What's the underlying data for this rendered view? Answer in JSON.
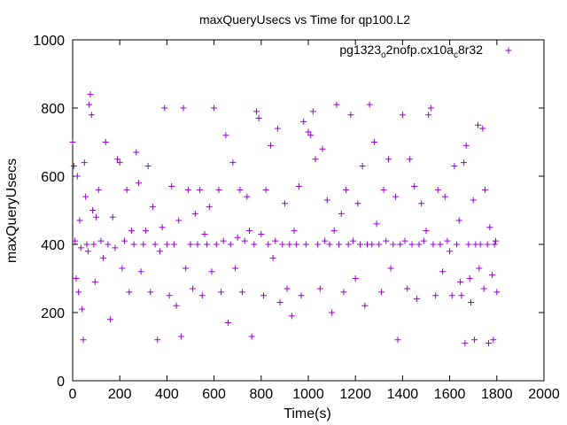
{
  "chart_data": {
    "type": "scatter",
    "title": "maxQueryUsecs vs Time for qp100.L2",
    "xlabel": "Time(s)",
    "ylabel": "maxQueryUsecs",
    "xlim": [
      0,
      2000
    ],
    "ylim": [
      0,
      1000
    ],
    "x_ticks": [
      0,
      200,
      400,
      600,
      800,
      1000,
      1200,
      1400,
      1600,
      1800,
      2000
    ],
    "y_ticks": [
      0,
      200,
      400,
      600,
      800,
      1000
    ],
    "grid": false,
    "legend_position": "top-right",
    "series": [
      {
        "name": "pg1323_o2nofp.cx10a_c8r32",
        "name_parts": {
          "a": "pg1323",
          "b": "o",
          "c": "2nofp.cx10a",
          "d": "c",
          "e": "8r32"
        },
        "marker": "plus",
        "color": "#9400d3",
        "points": [
          [
            0,
            700
          ],
          [
            5,
            630
          ],
          [
            10,
            410
          ],
          [
            15,
            300
          ],
          [
            20,
            600
          ],
          [
            25,
            260
          ],
          [
            30,
            470
          ],
          [
            35,
            390
          ],
          [
            40,
            210
          ],
          [
            45,
            120
          ],
          [
            50,
            640
          ],
          [
            55,
            540
          ],
          [
            60,
            400
          ],
          [
            65,
            380
          ],
          [
            70,
            810
          ],
          [
            75,
            840
          ],
          [
            80,
            780
          ],
          [
            85,
            500
          ],
          [
            90,
            400
          ],
          [
            95,
            290
          ],
          [
            100,
            480
          ],
          [
            110,
            560
          ],
          [
            120,
            410
          ],
          [
            130,
            360
          ],
          [
            140,
            700
          ],
          [
            150,
            400
          ],
          [
            160,
            180
          ],
          [
            170,
            480
          ],
          [
            180,
            390
          ],
          [
            190,
            650
          ],
          [
            200,
            640
          ],
          [
            210,
            330
          ],
          [
            220,
            410
          ],
          [
            230,
            560
          ],
          [
            240,
            260
          ],
          [
            250,
            440
          ],
          [
            260,
            400
          ],
          [
            270,
            670
          ],
          [
            280,
            580
          ],
          [
            290,
            320
          ],
          [
            300,
            400
          ],
          [
            310,
            440
          ],
          [
            320,
            630
          ],
          [
            330,
            260
          ],
          [
            340,
            510
          ],
          [
            350,
            400
          ],
          [
            360,
            120
          ],
          [
            370,
            380
          ],
          [
            380,
            450
          ],
          [
            390,
            800
          ],
          [
            400,
            400
          ],
          [
            410,
            250
          ],
          [
            420,
            570
          ],
          [
            430,
            400
          ],
          [
            440,
            220
          ],
          [
            450,
            470
          ],
          [
            460,
            130
          ],
          [
            470,
            800
          ],
          [
            480,
            330
          ],
          [
            490,
            560
          ],
          [
            500,
            400
          ],
          [
            510,
            270
          ],
          [
            520,
            490
          ],
          [
            530,
            400
          ],
          [
            540,
            560
          ],
          [
            550,
            250
          ],
          [
            560,
            430
          ],
          [
            570,
            400
          ],
          [
            580,
            510
          ],
          [
            590,
            320
          ],
          [
            600,
            800
          ],
          [
            610,
            400
          ],
          [
            620,
            560
          ],
          [
            630,
            260
          ],
          [
            640,
            410
          ],
          [
            650,
            720
          ],
          [
            660,
            170
          ],
          [
            670,
            400
          ],
          [
            680,
            640
          ],
          [
            690,
            330
          ],
          [
            700,
            420
          ],
          [
            710,
            560
          ],
          [
            720,
            260
          ],
          [
            730,
            410
          ],
          [
            740,
            540
          ],
          [
            750,
            440
          ],
          [
            760,
            130
          ],
          [
            770,
            400
          ],
          [
            780,
            790
          ],
          [
            790,
            770
          ],
          [
            800,
            430
          ],
          [
            810,
            250
          ],
          [
            820,
            560
          ],
          [
            830,
            400
          ],
          [
            840,
            690
          ],
          [
            850,
            360
          ],
          [
            860,
            410
          ],
          [
            870,
            740
          ],
          [
            880,
            230
          ],
          [
            890,
            400
          ],
          [
            900,
            520
          ],
          [
            910,
            270
          ],
          [
            920,
            400
          ],
          [
            930,
            190
          ],
          [
            940,
            440
          ],
          [
            950,
            400
          ],
          [
            960,
            570
          ],
          [
            970,
            250
          ],
          [
            980,
            760
          ],
          [
            990,
            400
          ],
          [
            1000,
            730
          ],
          [
            1010,
            720
          ],
          [
            1020,
            790
          ],
          [
            1030,
            650
          ],
          [
            1040,
            400
          ],
          [
            1050,
            270
          ],
          [
            1060,
            680
          ],
          [
            1070,
            410
          ],
          [
            1080,
            530
          ],
          [
            1090,
            400
          ],
          [
            1100,
            200
          ],
          [
            1110,
            440
          ],
          [
            1120,
            810
          ],
          [
            1130,
            400
          ],
          [
            1140,
            490
          ],
          [
            1150,
            260
          ],
          [
            1160,
            560
          ],
          [
            1170,
            400
          ],
          [
            1180,
            780
          ],
          [
            1190,
            410
          ],
          [
            1200,
            300
          ],
          [
            1210,
            520
          ],
          [
            1220,
            400
          ],
          [
            1230,
            630
          ],
          [
            1240,
            220
          ],
          [
            1250,
            400
          ],
          [
            1260,
            810
          ],
          [
            1270,
            400
          ],
          [
            1280,
            700
          ],
          [
            1290,
            460
          ],
          [
            1300,
            400
          ],
          [
            1310,
            260
          ],
          [
            1320,
            560
          ],
          [
            1330,
            410
          ],
          [
            1340,
            650
          ],
          [
            1350,
            330
          ],
          [
            1360,
            400
          ],
          [
            1370,
            540
          ],
          [
            1380,
            120
          ],
          [
            1390,
            400
          ],
          [
            1400,
            780
          ],
          [
            1410,
            410
          ],
          [
            1420,
            270
          ],
          [
            1430,
            650
          ],
          [
            1440,
            400
          ],
          [
            1450,
            570
          ],
          [
            1460,
            240
          ],
          [
            1470,
            400
          ],
          [
            1480,
            520
          ],
          [
            1490,
            410
          ],
          [
            1500,
            440
          ],
          [
            1510,
            780
          ],
          [
            1520,
            800
          ],
          [
            1530,
            400
          ],
          [
            1540,
            250
          ],
          [
            1550,
            560
          ],
          [
            1560,
            400
          ],
          [
            1570,
            320
          ],
          [
            1580,
            540
          ],
          [
            1590,
            410
          ],
          [
            1600,
            380
          ],
          [
            1610,
            250
          ],
          [
            1620,
            630
          ],
          [
            1630,
            400
          ],
          [
            1640,
            470
          ],
          [
            1650,
            250
          ],
          [
            1660,
            640
          ],
          [
            1670,
            690
          ],
          [
            1680,
            400
          ],
          [
            1690,
            230
          ],
          [
            1700,
            530
          ],
          [
            1710,
            400
          ],
          [
            1720,
            750
          ],
          [
            1730,
            400
          ],
          [
            1740,
            740
          ],
          [
            1750,
            560
          ],
          [
            1760,
            400
          ],
          [
            1770,
            450
          ],
          [
            1780,
            310
          ],
          [
            1790,
            400
          ],
          [
            1800,
            260
          ],
          [
            1795,
            410
          ],
          [
            1785,
            120
          ],
          [
            1765,
            110
          ],
          [
            1745,
            270
          ],
          [
            1725,
            330
          ],
          [
            1705,
            120
          ],
          [
            1685,
            300
          ],
          [
            1665,
            110
          ],
          [
            1645,
            290
          ]
        ]
      }
    ]
  }
}
